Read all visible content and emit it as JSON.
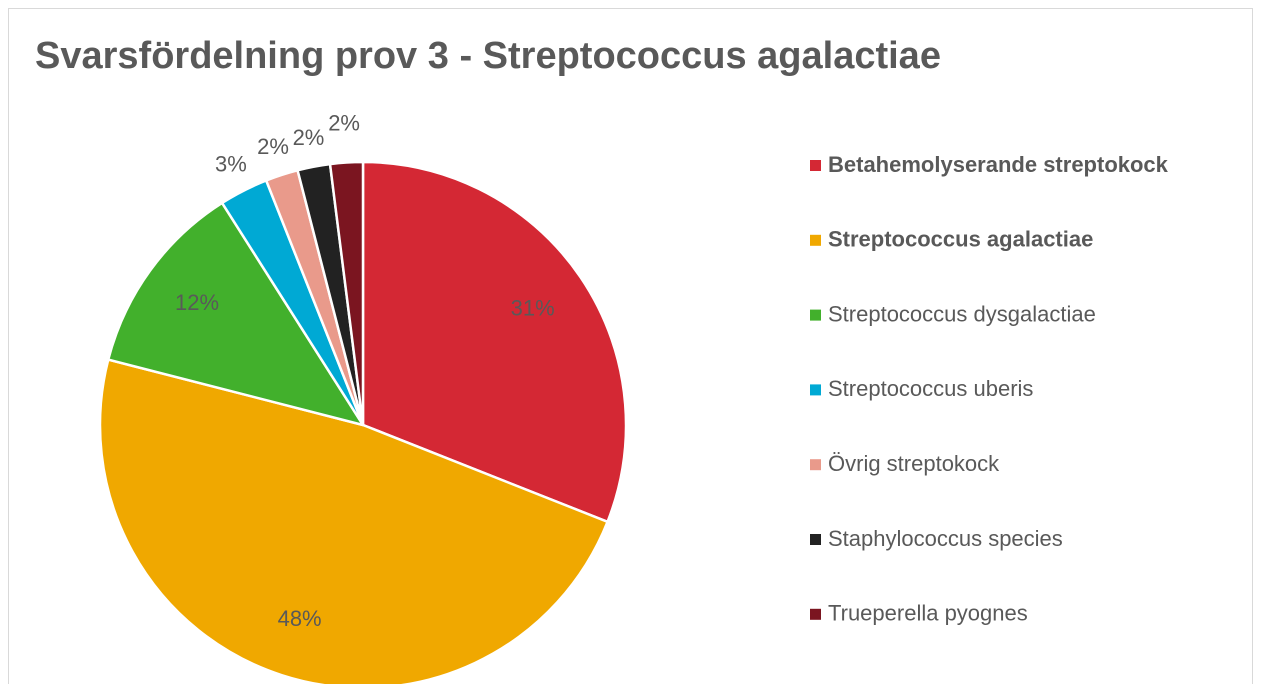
{
  "chart_data": {
    "type": "pie",
    "title": "Svarsfördelning prov 3 - Streptococcus agalactiae",
    "categories": [
      "Betahemolyserande streptokock",
      "Streptococcus agalactiae",
      "Streptococcus dysgalactiae",
      "Streptococcus uberis",
      "Övrig streptokock",
      "Staphylococcus species",
      "Trueperella pyognes"
    ],
    "values": [
      31,
      48,
      12,
      3,
      2,
      2,
      2
    ],
    "value_labels": [
      "31%",
      "48%",
      "12%",
      "3%",
      "2%",
      "2%",
      "2%"
    ],
    "colors": [
      "#d42834",
      "#f0a800",
      "#42b02c",
      "#00a9d4",
      "#e99a8b",
      "#222222",
      "#7b1520"
    ],
    "legend_bold": [
      true,
      true,
      false,
      false,
      false,
      false,
      false
    ],
    "legend": "right"
  }
}
